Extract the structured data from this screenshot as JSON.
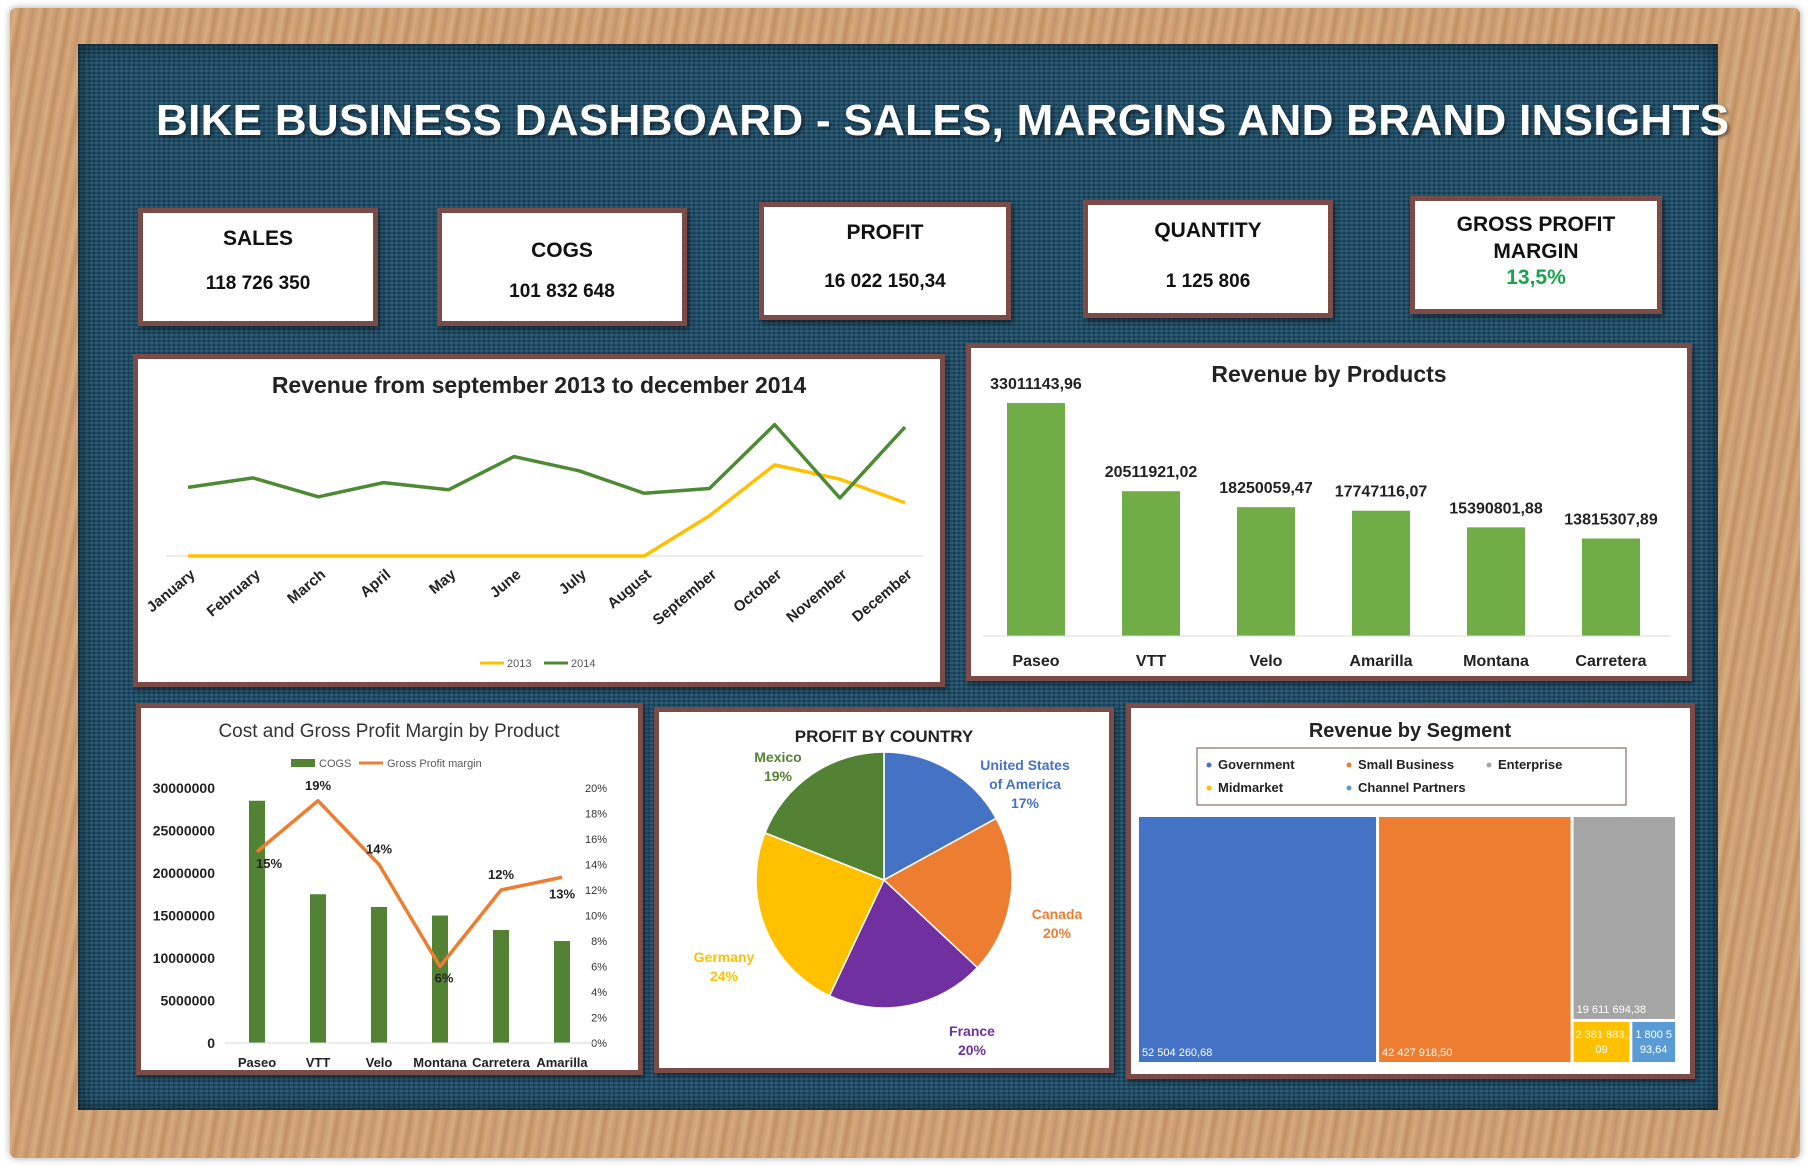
{
  "dashboard": {
    "title": "BIKE BUSINESS DASHBOARD - SALES, MARGINS AND BRAND INSIGHTS",
    "colors": {
      "board": "#1d4e6a",
      "frame_border": "#7a4b47",
      "positive": "#1aa34a"
    }
  },
  "kpis": {
    "sales": {
      "label": "SALES",
      "value": "118 726 350"
    },
    "cogs": {
      "label": "COGS",
      "value": "101 832 648"
    },
    "profit": {
      "label": "PROFIT",
      "value": "16 022 150,34"
    },
    "quantity": {
      "label": "QUANTITY",
      "value": "1 125 806"
    },
    "gpm": {
      "label_line1": "GROSS PROFIT",
      "label_line2": "MARGIN",
      "value": "13,5%"
    }
  },
  "chart_data": [
    {
      "id": "revenue_trend",
      "type": "line",
      "title": "Revenue from september 2013 to december 2014",
      "categories": [
        "January",
        "February",
        "March",
        "April",
        "May",
        "June",
        "July",
        "August",
        "September",
        "October",
        "November",
        "December"
      ],
      "ylim": [
        0,
        12000000
      ],
      "grid": false,
      "legend_position": "bottom",
      "series": [
        {
          "name": "2013",
          "color": "#ffc000",
          "values": [
            0,
            0,
            0,
            0,
            0,
            0,
            0,
            0,
            3400000,
            7700000,
            6500000,
            4500000
          ]
        },
        {
          "name": "2014",
          "color": "#4e8a34",
          "values": [
            5800000,
            6600000,
            5000000,
            6200000,
            5600000,
            8400000,
            7200000,
            5300000,
            5700000,
            11100000,
            4900000,
            10900000
          ]
        }
      ]
    },
    {
      "id": "revenue_by_products",
      "type": "bar",
      "title": "Revenue by Products",
      "categories": [
        "Paseo",
        "VTT",
        "Velo",
        "Amarilla",
        "Montana",
        "Carretera"
      ],
      "values": [
        33011143.96,
        20511921.02,
        18250059.47,
        17747116.07,
        15390801.88,
        13815307.89
      ],
      "value_labels": [
        "33011143,96",
        "20511921,02",
        "18250059,47",
        "17747116,07",
        "15390801,88",
        "13815307,89"
      ],
      "color": "#70ad47",
      "ylim": [
        0,
        34000000
      ]
    },
    {
      "id": "cost_and_margin",
      "type": "bar",
      "title": "Cost and Gross Profit Margin by Product",
      "categories": [
        "Paseo",
        "VTT",
        "Velo",
        "Montana",
        "Carretera",
        "Amarilla"
      ],
      "legend_position": "top",
      "series": [
        {
          "name": "COGS",
          "type": "bar",
          "axis": "left",
          "color": "#548235",
          "values": [
            28500000,
            17500000,
            16000000,
            15000000,
            13300000,
            12000000
          ]
        },
        {
          "name": "Gross Profit margin",
          "type": "line",
          "axis": "right",
          "color": "#ed7d31",
          "values": [
            15,
            19,
            14,
            6,
            12,
            13
          ],
          "labels": [
            "15%",
            "19%",
            "14%",
            "6%",
            "12%",
            "13%"
          ]
        }
      ],
      "y_left": {
        "ylim": [
          0,
          30000000
        ],
        "ticks": [
          "0",
          "5000000",
          "10000000",
          "15000000",
          "20000000",
          "25000000",
          "30000000"
        ]
      },
      "y_right": {
        "ylim": [
          0,
          20
        ],
        "ticks": [
          "0%",
          "2%",
          "4%",
          "6%",
          "8%",
          "10%",
          "12%",
          "14%",
          "16%",
          "18%",
          "20%"
        ]
      }
    },
    {
      "id": "profit_by_country",
      "type": "pie",
      "title": "PROFIT BY COUNTRY",
      "slices": [
        {
          "label_lines": [
            "United States",
            "of America"
          ],
          "pct_label": "17%",
          "value": 17,
          "color": "#4472c4"
        },
        {
          "label_lines": [
            "Canada"
          ],
          "pct_label": "20%",
          "value": 20,
          "color": "#ed7d31"
        },
        {
          "label_lines": [
            "France"
          ],
          "pct_label": "20%",
          "value": 20,
          "color": "#7030a0"
        },
        {
          "label_lines": [
            "Germany"
          ],
          "pct_label": "24%",
          "value": 24,
          "color": "#ffc000"
        },
        {
          "label_lines": [
            "Mexico"
          ],
          "pct_label": "19%",
          "value": 19,
          "color": "#548235"
        }
      ]
    },
    {
      "id": "revenue_by_segment",
      "type": "treemap",
      "title": "Revenue by Segment",
      "legend": [
        "Government",
        "Small Business",
        "Enterprise",
        "Midmarket",
        "Channel Partners"
      ],
      "items": [
        {
          "name": "Government",
          "value": 52504260.68,
          "label": "52 504 260,68",
          "color": "#4472c4"
        },
        {
          "name": "Small Business",
          "value": 42427918.5,
          "label": "42 427 918,50",
          "color": "#ed7d31"
        },
        {
          "name": "Enterprise",
          "value": 19611694.38,
          "label": "19 611 694,38",
          "color": "#a5a5a5"
        },
        {
          "name": "Midmarket",
          "value": 2381883.09,
          "label_lines": [
            "2 381 883,",
            "09"
          ],
          "color": "#ffc000"
        },
        {
          "name": "Channel Partners",
          "value": 1800593.64,
          "label_lines": [
            "1 800 5",
            "93,64"
          ],
          "color": "#5b9bd5"
        }
      ]
    }
  ]
}
